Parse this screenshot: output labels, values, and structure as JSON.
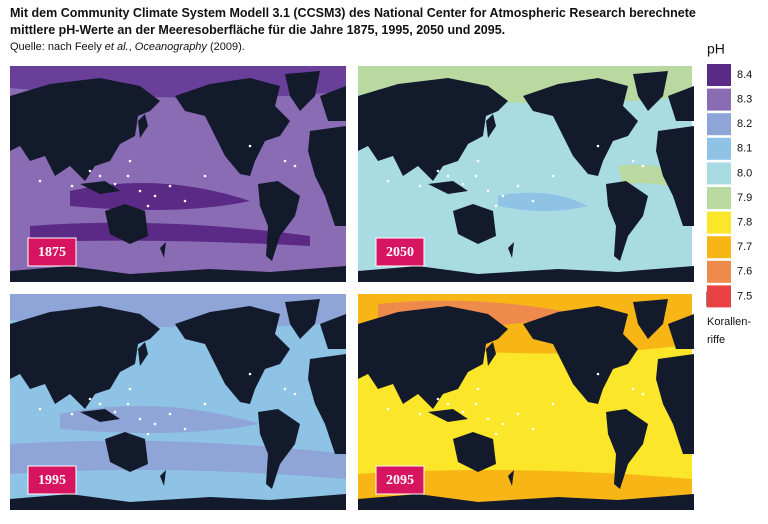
{
  "header": {
    "title_lines": [
      "Mit dem Community Climate System Modell 3.1 (CCSM3) des National Center for Atmospheric Research berechnete",
      "mittlere pH-Werte an der Meeresoberfläche für die Jahre 1875, 1995, 2050 und 2095."
    ],
    "source": {
      "prefix": "Quelle: nach Feely ",
      "italic_1": "et al.",
      "middle": ", ",
      "italic_2": "Oceanography",
      "suffix": " (2009)."
    }
  },
  "panels": [
    {
      "year": "1875"
    },
    {
      "year": "2050"
    },
    {
      "year": "1995"
    },
    {
      "year": "2095"
    }
  ],
  "legend": {
    "title": "pH",
    "items": [
      {
        "label": "8.4",
        "color": "#5b2a86"
      },
      {
        "label": "8.3",
        "color": "#8a6cb4"
      },
      {
        "label": "8.2",
        "color": "#8fa5d8"
      },
      {
        "label": "8.1",
        "color": "#8ec3e6"
      },
      {
        "label": "8.0",
        "color": "#a9dbe3"
      },
      {
        "label": "7.9",
        "color": "#b9d9a0"
      },
      {
        "label": "7.8",
        "color": "#fbe62a"
      },
      {
        "label": "7.7",
        "color": "#f7b516"
      },
      {
        "label": "7.6",
        "color": "#ee8a4c"
      },
      {
        "label": "7.5",
        "color": "#e94141"
      }
    ],
    "coral_lines": [
      "Korallen-",
      "riffe"
    ]
  }
}
